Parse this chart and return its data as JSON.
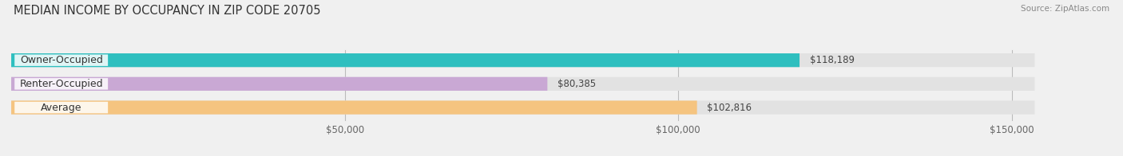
{
  "title": "MEDIAN INCOME BY OCCUPANCY IN ZIP CODE 20705",
  "source": "Source: ZipAtlas.com",
  "categories": [
    "Owner-Occupied",
    "Renter-Occupied",
    "Average"
  ],
  "values": [
    118189,
    80385,
    102816
  ],
  "bar_colors": [
    "#2ebfbf",
    "#c9a8d4",
    "#f5c480"
  ],
  "value_labels": [
    "$118,189",
    "$80,385",
    "$102,816"
  ],
  "xlim_max": 165000,
  "xticks": [
    50000,
    100000,
    150000
  ],
  "xtick_labels": [
    "$50,000",
    "$100,000",
    "$150,000"
  ],
  "background_color": "#f0f0f0",
  "bar_background_color": "#e2e2e2",
  "title_fontsize": 10.5,
  "label_fontsize": 9,
  "tick_fontsize": 8.5,
  "value_fontsize": 8.5
}
